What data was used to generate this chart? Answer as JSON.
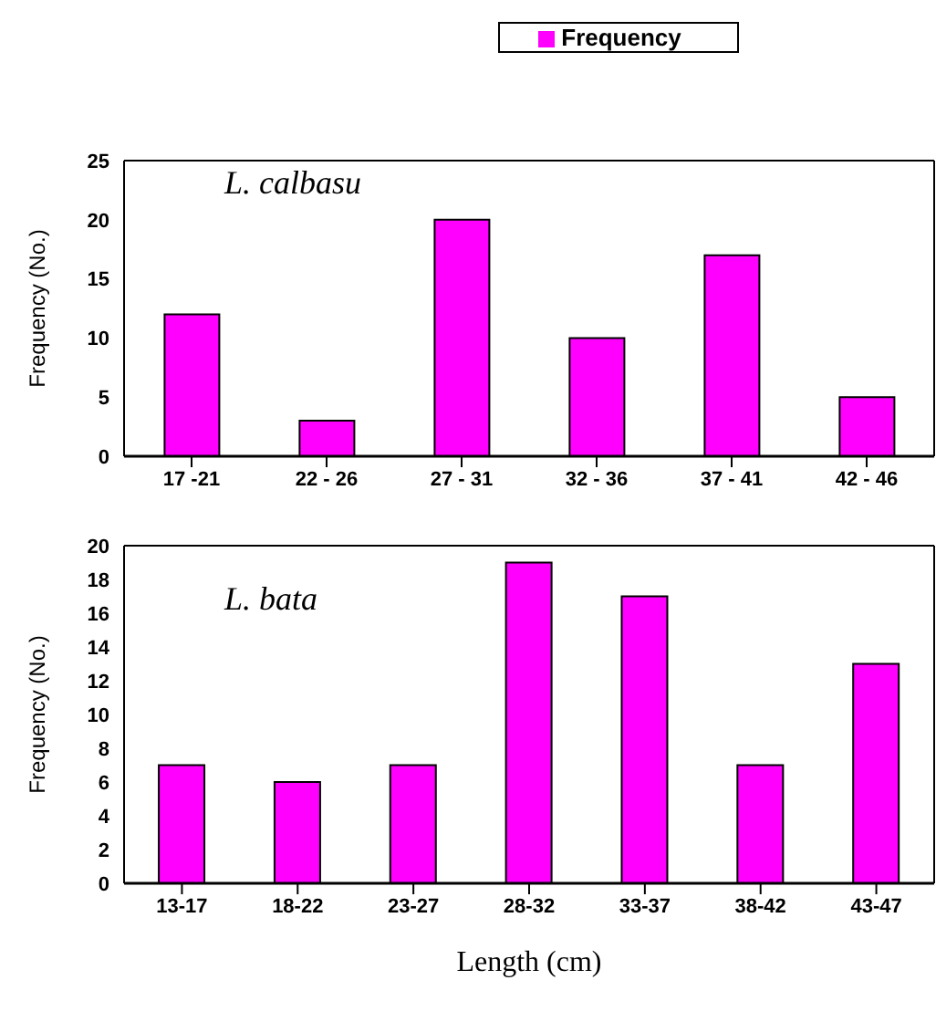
{
  "chart_data": [
    {
      "type": "bar",
      "categories": [
        "17 -21",
        "22 - 26",
        "27 - 31",
        "32 - 36",
        "37 - 41",
        "42 - 46"
      ],
      "series": [
        {
          "name": "Frequency",
          "color": "#ff00ff",
          "values": [
            12,
            3,
            20,
            10,
            17,
            5
          ]
        }
      ],
      "ylabel": "Frequency (No.)",
      "ylim": [
        0,
        25
      ],
      "yticks": [
        0,
        5,
        10,
        15,
        20,
        25
      ],
      "annotations": [
        "L. calbasu"
      ],
      "legend": "top",
      "grid": false
    },
    {
      "type": "bar",
      "categories": [
        "13-17",
        "18-22",
        "23-27",
        "28-32",
        "33-37",
        "38-42",
        "43-47"
      ],
      "series": [
        {
          "color": "#ff00ff",
          "values": [
            7,
            6,
            7,
            19,
            17,
            7,
            13
          ]
        }
      ],
      "ylabel": "Frequency (No.)",
      "xlabel": "Length (cm)",
      "ylim": [
        0,
        20
      ],
      "yticks": [
        0,
        2,
        4,
        6,
        8,
        10,
        12,
        14,
        16,
        18,
        20
      ],
      "annotations": [
        "L. bata"
      ],
      "grid": false
    }
  ]
}
